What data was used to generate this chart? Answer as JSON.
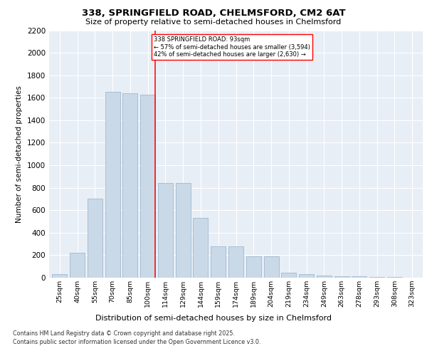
{
  "title1": "338, SPRINGFIELD ROAD, CHELMSFORD, CM2 6AT",
  "title2": "Size of property relative to semi-detached houses in Chelmsford",
  "xlabel": "Distribution of semi-detached houses by size in Chelmsford",
  "ylabel": "Number of semi-detached properties",
  "categories": [
    "25sqm",
    "40sqm",
    "55sqm",
    "70sqm",
    "85sqm",
    "100sqm",
    "114sqm",
    "129sqm",
    "144sqm",
    "159sqm",
    "174sqm",
    "189sqm",
    "204sqm",
    "219sqm",
    "234sqm",
    "249sqm",
    "263sqm",
    "278sqm",
    "293sqm",
    "308sqm",
    "323sqm"
  ],
  "values": [
    30,
    220,
    700,
    1650,
    1640,
    1630,
    840,
    840,
    530,
    280,
    280,
    190,
    190,
    45,
    30,
    20,
    15,
    15,
    8,
    5,
    0
  ],
  "bar_color": "#c9d9e8",
  "bar_edge_color": "#a0b8d0",
  "annotation_title": "338 SPRINGFIELD ROAD: 93sqm",
  "annotation_line1": "← 57% of semi-detached houses are smaller (3,594)",
  "annotation_line2": "42% of semi-detached houses are larger (2,630) →",
  "ylim": [
    0,
    2200
  ],
  "yticks": [
    0,
    200,
    400,
    600,
    800,
    1000,
    1200,
    1400,
    1600,
    1800,
    2000,
    2200
  ],
  "plot_bg_color": "#e8eef5",
  "red_line_x": 5.43,
  "footer1": "Contains HM Land Registry data © Crown copyright and database right 2025.",
  "footer2": "Contains public sector information licensed under the Open Government Licence v3.0."
}
